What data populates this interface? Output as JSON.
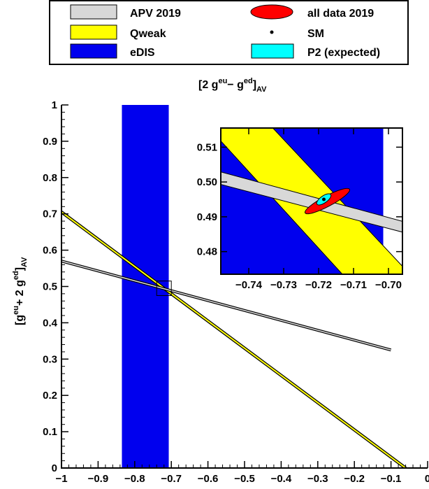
{
  "legend": {
    "items": [
      {
        "label": "APV 2019",
        "color": "#d8d8d8",
        "kind": "box"
      },
      {
        "label": "all data 2019",
        "color": "#ff0000",
        "kind": "ellipse"
      },
      {
        "label": "Qweak",
        "color": "#ffff00",
        "kind": "box"
      },
      {
        "label": "SM",
        "color": "#000000",
        "kind": "dot"
      },
      {
        "label": "eDIS",
        "color": "#0000ee",
        "kind": "box"
      },
      {
        "label": "P2 (expected)",
        "color": "#00ffff",
        "kind": "box"
      }
    ]
  },
  "chart_data": [
    {
      "type": "area",
      "title": "",
      "top_axis_label": {
        "main": "[2 g",
        "sup1": "eu",
        "mid": "− g",
        "sup2": "ed",
        "sub": "AV"
      },
      "ylabel": {
        "main": "[g",
        "sup1": "eu",
        "mid": "+ 2 g",
        "sup2": "ed",
        "sub": "AV"
      },
      "xlim": [
        -1.0,
        0.0
      ],
      "ylim": [
        0.0,
        1.0
      ],
      "xticks": [
        -1.0,
        -0.9,
        -0.8,
        -0.7,
        -0.6,
        -0.5,
        -0.4,
        -0.3,
        -0.2,
        -0.1,
        0.0
      ],
      "xtick_labels": [
        "−1",
        "−0.9",
        "−0.8",
        "−0.7",
        "−0.6",
        "−0.5",
        "−0.4",
        "−0.3",
        "−0.2",
        "−0.1",
        "0"
      ],
      "yticks": [
        0,
        0.1,
        0.2,
        0.3,
        0.4,
        0.5,
        0.6,
        0.7,
        0.8,
        0.9,
        1
      ],
      "ytick_labels": [
        "0",
        "0.1",
        "0.2",
        "0.3",
        "0.4",
        "0.5",
        "0.6",
        "0.7",
        "0.8",
        "0.9",
        "1"
      ],
      "bands": [
        {
          "name": "eDIS",
          "orientation": "vertical",
          "x_range": [
            -0.835,
            -0.707
          ],
          "color": "#0000ee"
        },
        {
          "name": "Qweak",
          "points": [
            [
              -1.0,
              0.705
            ],
            [
              -0.06,
              0.0
            ]
          ],
          "color": "#ffff00"
        },
        {
          "name": "APV 2019",
          "points": [
            [
              -1.0,
              0.57
            ],
            [
              -0.1,
              0.325
            ]
          ],
          "color": "#d8d8d8"
        }
      ],
      "zoom_box": {
        "x_range": [
          -0.74,
          -0.7
        ],
        "y_range": [
          0.475,
          0.515
        ]
      }
    },
    {
      "type": "area",
      "title": "",
      "xlim": [
        -0.748,
        -0.696
      ],
      "ylim": [
        0.4735,
        0.5155
      ],
      "xticks": [
        -0.74,
        -0.73,
        -0.72,
        -0.71,
        -0.7
      ],
      "xtick_labels": [
        "−0.74",
        "−0.73",
        "−0.72",
        "−0.71",
        "−0.70"
      ],
      "yticks": [
        0.48,
        0.49,
        0.5,
        0.51
      ],
      "ytick_labels": [
        "0.48",
        "0.49",
        "0.50",
        "0.51"
      ],
      "bands": [
        {
          "name": "eDIS",
          "orientation": "vertical",
          "x_range": [
            -0.748,
            -0.7015
          ],
          "color": "#0000ee"
        },
        {
          "name": "Qweak",
          "polygon": [
            [
              -0.748,
              0.5155
            ],
            [
              -0.748,
              0.5118
            ],
            [
              -0.7132,
              0.4735
            ],
            [
              -0.696,
              0.4735
            ],
            [
              -0.696,
              0.4758
            ],
            [
              -0.7331,
              0.5155
            ]
          ],
          "color": "#ffff00"
        },
        {
          "name": "APV 2019",
          "polygon": [
            [
              -0.748,
              0.5029
            ],
            [
              -0.696,
              0.4887
            ],
            [
              -0.696,
              0.4856
            ],
            [
              -0.748,
              0.4993
            ]
          ],
          "color": "#d8d8d8"
        }
      ],
      "ellipses": [
        {
          "name": "all data 2019",
          "cx": -0.7175,
          "cy": 0.4945,
          "rx": 0.0072,
          "ry": 0.0011,
          "angle": -28,
          "color": "#ff0000"
        },
        {
          "name": "P2 (expected)",
          "cx": -0.7185,
          "cy": 0.495,
          "rx": 0.0024,
          "ry": 0.0006,
          "angle": -35,
          "color": "#00ffff"
        }
      ],
      "points": [
        {
          "name": "SM",
          "x": -0.7185,
          "y": 0.495,
          "color": "#000000"
        }
      ]
    }
  ]
}
